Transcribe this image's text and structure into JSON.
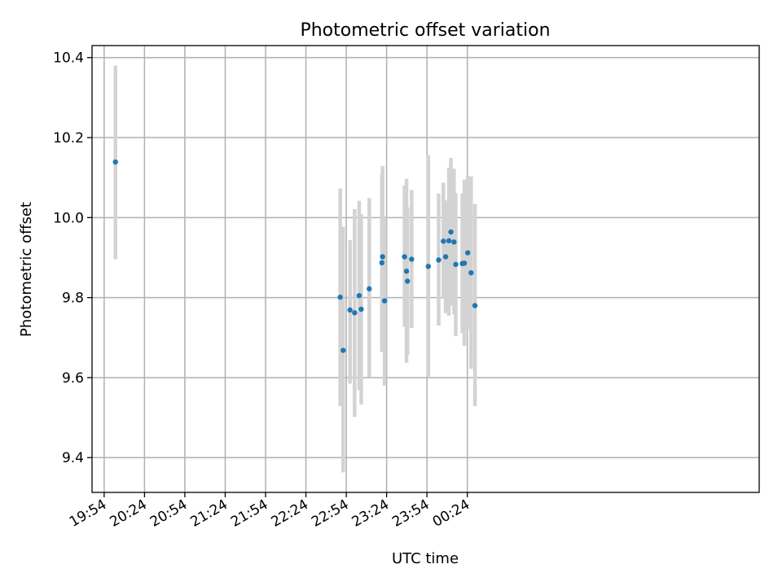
{
  "chart_data": {
    "type": "scatter",
    "title": "Photometric offset variation",
    "xlabel": "UTC time",
    "ylabel": "Photometric offset",
    "x_axis": {
      "unit": "minutes_since_19:54",
      "min": -9,
      "max": 487,
      "ticks": [
        {
          "label": "19:54",
          "value": 0
        },
        {
          "label": "20:24",
          "value": 30
        },
        {
          "label": "20:54",
          "value": 60
        },
        {
          "label": "21:24",
          "value": 90
        },
        {
          "label": "21:54",
          "value": 120
        },
        {
          "label": "22:24",
          "value": 150
        },
        {
          "label": "22:54",
          "value": 180
        },
        {
          "label": "23:24",
          "value": 210
        },
        {
          "label": "23:54",
          "value": 240
        },
        {
          "label": "00:24",
          "value": 270
        }
      ]
    },
    "y_axis": {
      "min": 9.313,
      "max": 10.43,
      "ticks": [
        {
          "label": "9.4",
          "value": 9.4
        },
        {
          "label": "9.6",
          "value": 9.6
        },
        {
          "label": "9.8",
          "value": 9.8
        },
        {
          "label": "10.0",
          "value": 10.0
        },
        {
          "label": "10.2",
          "value": 10.2
        },
        {
          "label": "10.4",
          "value": 10.4
        }
      ]
    },
    "grid": true,
    "colors": {
      "marker": "#1f77b4",
      "errorbar": "#d3d3d3",
      "grid": "#b0b0b0"
    },
    "points": [
      {
        "x": 8.4,
        "y": 10.139,
        "lo": 9.896,
        "hi": 10.38
      },
      {
        "x": 175.5,
        "y": 9.801,
        "lo": 9.529,
        "hi": 10.073
      },
      {
        "x": 177.7,
        "y": 9.668,
        "lo": 9.363,
        "hi": 9.977
      },
      {
        "x": 182.8,
        "y": 9.769,
        "lo": 9.585,
        "hi": 9.944
      },
      {
        "x": 186.2,
        "y": 9.762,
        "lo": 9.502,
        "hi": 10.021
      },
      {
        "x": 189.6,
        "y": 9.805,
        "lo": 9.569,
        "hi": 10.042
      },
      {
        "x": 191.1,
        "y": 9.771,
        "lo": 9.533,
        "hi": 10.009
      },
      {
        "x": 197.1,
        "y": 9.822,
        "lo": 9.602,
        "hi": 10.049
      },
      {
        "x": 206.5,
        "y": 9.887,
        "lo": 9.664,
        "hi": 10.111
      },
      {
        "x": 207.0,
        "y": 9.902,
        "lo": 9.676,
        "hi": 10.129
      },
      {
        "x": 208.5,
        "y": 9.792,
        "lo": 9.58,
        "hi": 10.004
      },
      {
        "x": 223.3,
        "y": 9.902,
        "lo": 9.727,
        "hi": 10.08
      },
      {
        "x": 224.8,
        "y": 9.866,
        "lo": 9.637,
        "hi": 10.097
      },
      {
        "x": 225.5,
        "y": 9.841,
        "lo": 9.657,
        "hi": 10.026
      },
      {
        "x": 228.6,
        "y": 9.896,
        "lo": 9.724,
        "hi": 10.069
      },
      {
        "x": 241.0,
        "y": 9.878,
        "lo": 9.602,
        "hi": 10.156
      },
      {
        "x": 248.7,
        "y": 9.894,
        "lo": 9.73,
        "hi": 10.06
      },
      {
        "x": 252.2,
        "y": 9.941,
        "lo": 9.797,
        "hi": 10.087
      },
      {
        "x": 253.9,
        "y": 9.902,
        "lo": 9.761,
        "hi": 10.043
      },
      {
        "x": 256.3,
        "y": 9.942,
        "lo": 9.755,
        "hi": 10.125
      },
      {
        "x": 257.8,
        "y": 9.964,
        "lo": 9.78,
        "hi": 10.149
      },
      {
        "x": 260.1,
        "y": 9.939,
        "lo": 9.758,
        "hi": 10.122
      },
      {
        "x": 261.4,
        "y": 9.883,
        "lo": 9.704,
        "hi": 10.061
      },
      {
        "x": 266.3,
        "y": 9.885,
        "lo": 9.711,
        "hi": 10.061
      },
      {
        "x": 267.8,
        "y": 9.886,
        "lo": 9.679,
        "hi": 10.095
      },
      {
        "x": 270.3,
        "y": 9.912,
        "lo": 9.721,
        "hi": 10.105
      },
      {
        "x": 272.8,
        "y": 9.862,
        "lo": 9.622,
        "hi": 10.103
      },
      {
        "x": 275.7,
        "y": 9.78,
        "lo": 9.529,
        "hi": 10.034
      }
    ]
  }
}
